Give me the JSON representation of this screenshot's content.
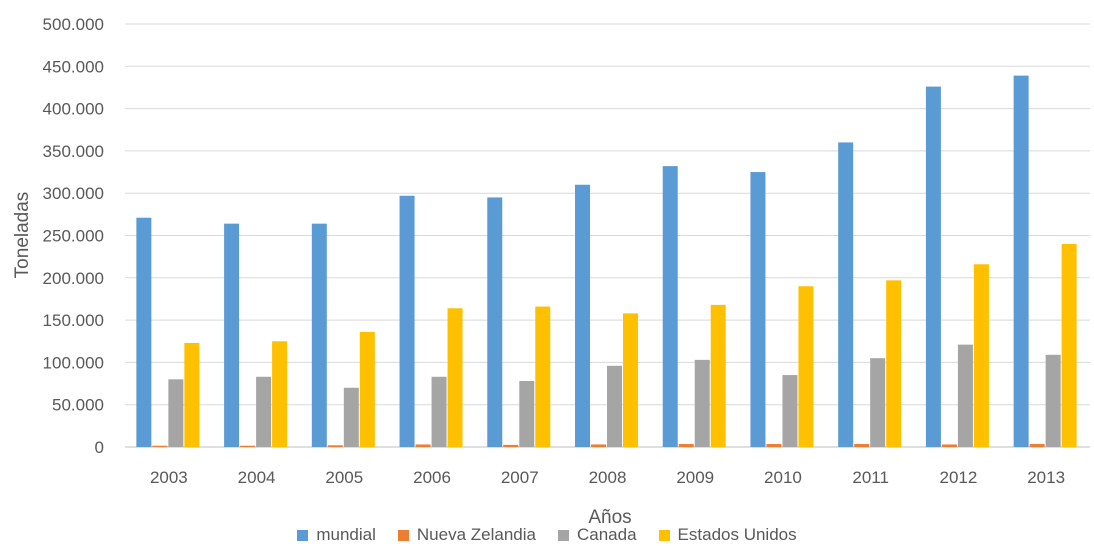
{
  "chart_data": {
    "type": "bar",
    "title": "",
    "xlabel": "Años",
    "ylabel": "Toneladas",
    "ylim": [
      0,
      500000
    ],
    "yticks": [
      0,
      50000,
      100000,
      150000,
      200000,
      250000,
      300000,
      350000,
      400000,
      450000,
      500000
    ],
    "ytick_labels": [
      "0",
      "50.000",
      "100.000",
      "150.000",
      "200.000",
      "250.000",
      "300.000",
      "350.000",
      "400.000",
      "450.000",
      "500.000"
    ],
    "grid": true,
    "legend_position": "bottom",
    "categories": [
      "2003",
      "2004",
      "2005",
      "2006",
      "2007",
      "2008",
      "2009",
      "2010",
      "2011",
      "2012",
      "2013"
    ],
    "series": [
      {
        "name": "mundial",
        "color": "#5B9BD5",
        "values": [
          271000,
          264000,
          264000,
          297000,
          295000,
          310000,
          332000,
          325000,
          360000,
          426000,
          439000
        ]
      },
      {
        "name": "Nueva Zelandia",
        "color": "#ED7D31",
        "values": [
          1500,
          1500,
          2000,
          3000,
          2500,
          3000,
          3500,
          3500,
          3500,
          3000,
          3500
        ]
      },
      {
        "name": "Canada",
        "color": "#A5A5A5",
        "values": [
          80000,
          83000,
          70000,
          83000,
          78000,
          96000,
          103000,
          85000,
          105000,
          121000,
          109000
        ]
      },
      {
        "name": "Estados Unidos",
        "color": "#FFC000",
        "values": [
          123000,
          125000,
          136000,
          164000,
          166000,
          158000,
          168000,
          190000,
          197000,
          216000,
          240000
        ]
      }
    ]
  }
}
